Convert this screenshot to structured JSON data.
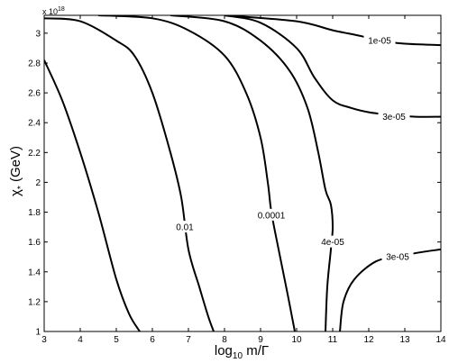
{
  "chart_data": {
    "type": "line",
    "subtype": "contour",
    "title": "",
    "xlabel_base": "log",
    "xlabel_sub": "10",
    "xlabel_rest": " m/Γ",
    "ylabel": "χ* (GeV)",
    "ylabel_main": "χ",
    "ylabel_sub": "*",
    "ylabel_rest": " (GeV)",
    "y_multiplier": {
      "base": "x 10",
      "exponent": "18"
    },
    "xlim": [
      3,
      14
    ],
    "ylim": [
      1,
      3.12
    ],
    "xticks": [
      3,
      4,
      5,
      6,
      7,
      8,
      9,
      10,
      11,
      12,
      13,
      14
    ],
    "yticks": [
      1,
      1.2,
      1.4,
      1.6,
      1.8,
      2,
      2.2,
      2.4,
      2.6,
      2.8,
      3
    ],
    "grid": false,
    "series": [
      {
        "label": "",
        "points": [
          [
            3.0,
            2.82
          ],
          [
            3.5,
            2.55
          ],
          [
            4.0,
            2.2
          ],
          [
            4.5,
            1.8
          ],
          [
            5.0,
            1.35
          ],
          [
            5.35,
            1.12
          ],
          [
            5.65,
            1.0
          ]
        ]
      },
      {
        "label": "0.01",
        "label_at": [
          6.9,
          1.7
        ],
        "points": [
          [
            3.0,
            3.1
          ],
          [
            4.0,
            3.08
          ],
          [
            5.0,
            2.95
          ],
          [
            5.5,
            2.85
          ],
          [
            6.0,
            2.6
          ],
          [
            6.5,
            2.2
          ],
          [
            6.8,
            1.9
          ],
          [
            7.0,
            1.55
          ],
          [
            7.3,
            1.3
          ],
          [
            7.55,
            1.1
          ],
          [
            7.7,
            1.0
          ]
        ]
      },
      {
        "label": "0.0001",
        "label_at": [
          9.3,
          1.78
        ],
        "points": [
          [
            4.5,
            3.12
          ],
          [
            6.0,
            3.1
          ],
          [
            7.0,
            3.02
          ],
          [
            8.0,
            2.85
          ],
          [
            8.6,
            2.6
          ],
          [
            9.0,
            2.3
          ],
          [
            9.2,
            2.0
          ],
          [
            9.3,
            1.8
          ],
          [
            9.5,
            1.55
          ],
          [
            9.75,
            1.25
          ],
          [
            9.95,
            1.0
          ]
        ]
      },
      {
        "label": "4e-05",
        "label_at": [
          11.0,
          1.6
        ],
        "points": [
          [
            6.5,
            3.12
          ],
          [
            8.0,
            3.08
          ],
          [
            9.0,
            2.95
          ],
          [
            9.8,
            2.75
          ],
          [
            10.3,
            2.5
          ],
          [
            10.6,
            2.2
          ],
          [
            10.8,
            1.95
          ],
          [
            10.95,
            1.85
          ],
          [
            11.0,
            1.7
          ],
          [
            10.95,
            1.55
          ],
          [
            10.85,
            1.3
          ],
          [
            10.8,
            1.0
          ]
        ]
      },
      {
        "label": "3e-05",
        "label_at": [
          12.7,
          2.44
        ],
        "points": [
          [
            8.0,
            3.12
          ],
          [
            9.0,
            3.07
          ],
          [
            10.0,
            2.9
          ],
          [
            10.5,
            2.7
          ],
          [
            11.0,
            2.55
          ],
          [
            11.5,
            2.5
          ],
          [
            12.0,
            2.47
          ],
          [
            12.7,
            2.45
          ],
          [
            13.3,
            2.44
          ],
          [
            14.0,
            2.44
          ]
        ]
      },
      {
        "label": "1e-05",
        "label_at": [
          12.3,
          2.95
        ],
        "points": [
          [
            8.0,
            3.12
          ],
          [
            10.0,
            3.08
          ],
          [
            11.0,
            3.02
          ],
          [
            11.8,
            2.98
          ],
          [
            12.3,
            2.95
          ],
          [
            13.0,
            2.93
          ],
          [
            14.0,
            2.92
          ]
        ]
      },
      {
        "label": "3e-05",
        "label_at": [
          12.8,
          1.5
        ],
        "points": [
          [
            11.2,
            1.0
          ],
          [
            11.3,
            1.2
          ],
          [
            11.6,
            1.35
          ],
          [
            12.2,
            1.47
          ],
          [
            12.8,
            1.5
          ],
          [
            13.4,
            1.53
          ],
          [
            14.0,
            1.55
          ]
        ]
      }
    ]
  }
}
